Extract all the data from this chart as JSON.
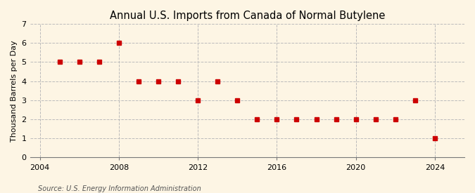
{
  "title": "Annual U.S. Imports from Canada of Normal Butylene",
  "ylabel": "Thousand Barrels per Day",
  "source_text": "Source: U.S. Energy Information Administration",
  "years": [
    2005,
    2006,
    2007,
    2008,
    2009,
    2010,
    2011,
    2012,
    2013,
    2014,
    2015,
    2016,
    2017,
    2018,
    2019,
    2020,
    2021,
    2022,
    2023,
    2024
  ],
  "values": [
    5,
    5,
    5,
    6,
    4,
    4,
    4,
    3,
    4,
    3,
    2,
    2,
    2,
    2,
    2,
    2,
    2,
    2,
    3,
    1
  ],
  "marker_color": "#cc0000",
  "marker_size": 4,
  "line_color": "#cc0000",
  "line_width": 0.6,
  "background_color": "#fdf5e4",
  "grid_color": "#bbbbbb",
  "xlim": [
    2003.5,
    2025.5
  ],
  "ylim": [
    0,
    7
  ],
  "yticks": [
    0,
    1,
    2,
    3,
    4,
    5,
    6,
    7
  ],
  "xticks": [
    2004,
    2008,
    2012,
    2016,
    2020,
    2024
  ],
  "vline_years": [
    2004,
    2008,
    2012,
    2016,
    2020,
    2024
  ],
  "title_fontsize": 10.5,
  "label_fontsize": 8,
  "tick_fontsize": 8,
  "source_fontsize": 7
}
